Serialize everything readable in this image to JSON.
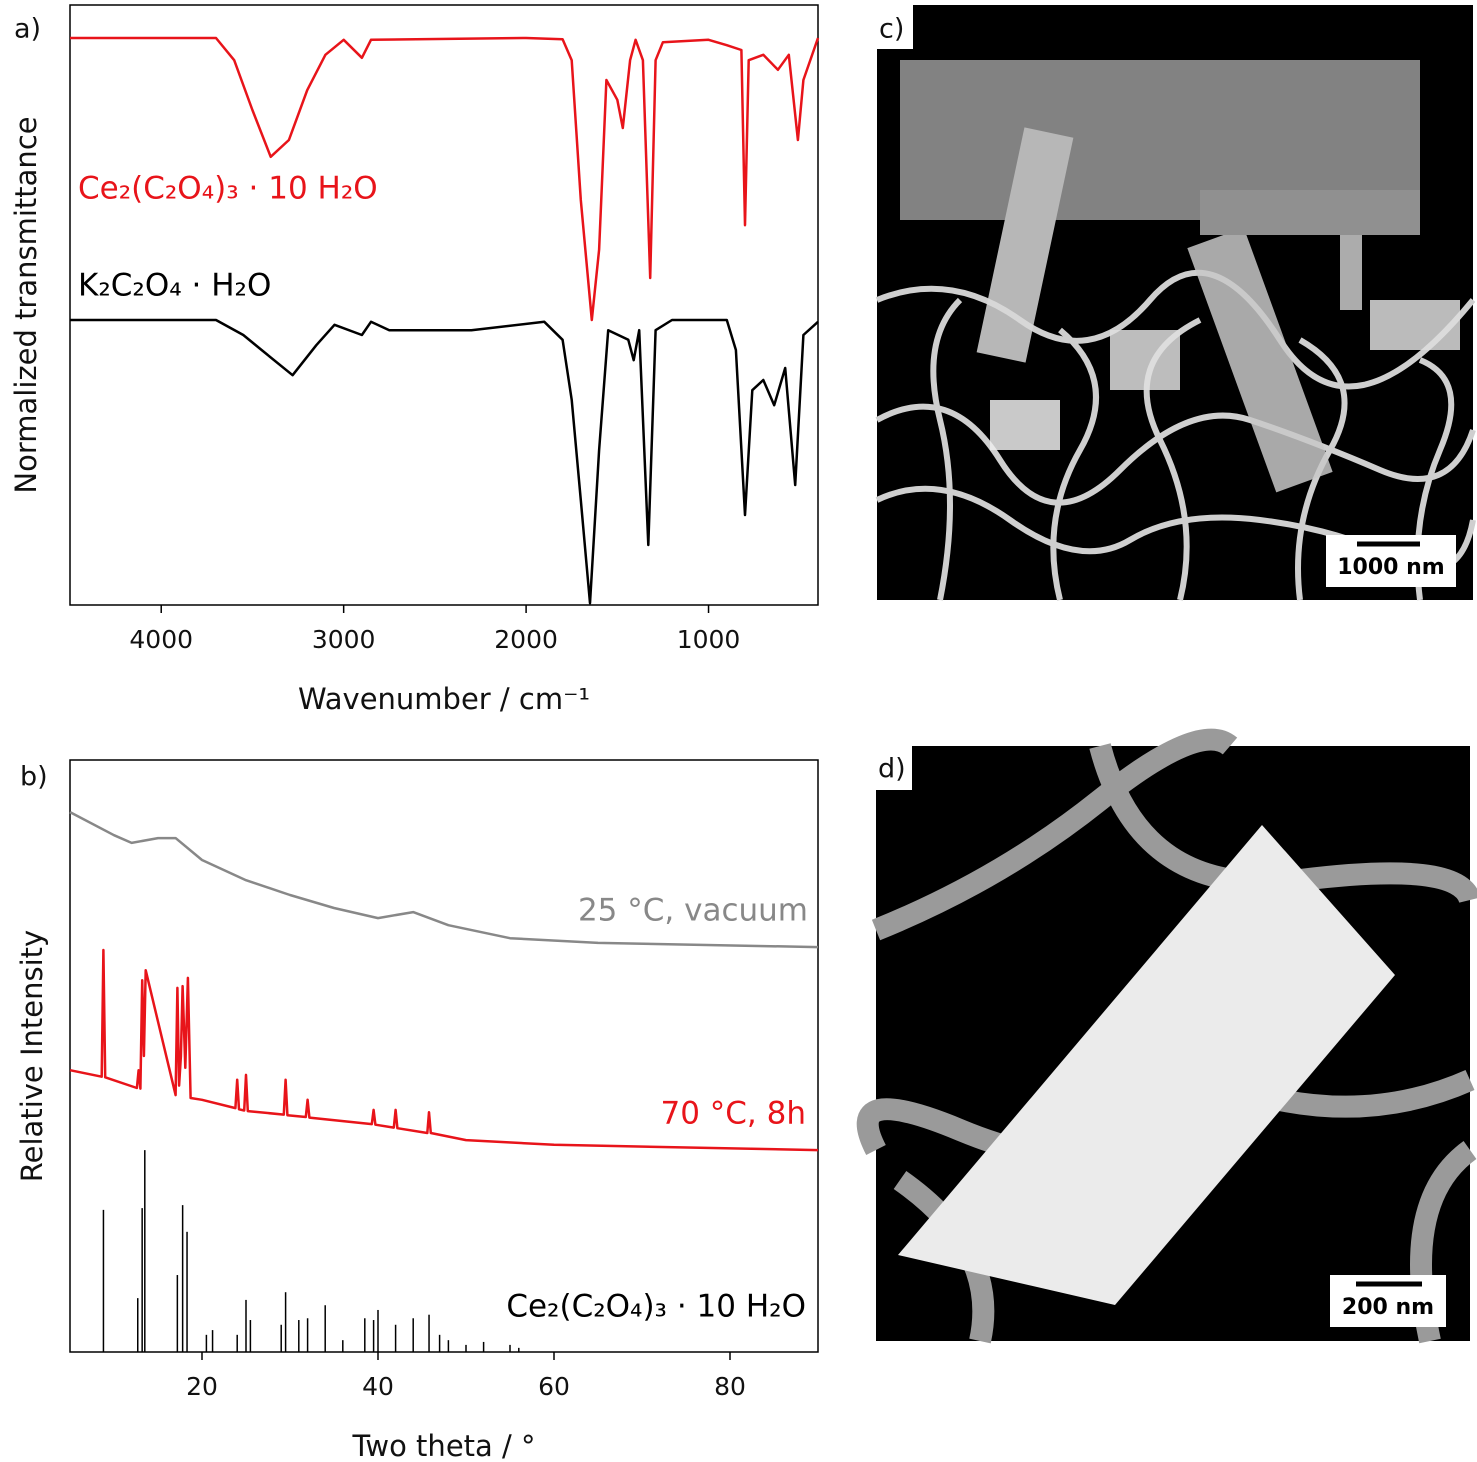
{
  "chart_data": [
    {
      "type": "line",
      "panel_label": "a)",
      "x_label": "Wavenumber / cm⁻¹",
      "y_label": "Normalized transmittance",
      "xlim": [
        4500,
        400
      ],
      "xticks": [
        4000,
        3000,
        2000,
        1000
      ],
      "ylim": [
        0,
        100
      ],
      "series": [
        {
          "name": "Ce₂(C₂O₄)₃ · 10 H₂O",
          "color": "#e8141a",
          "x": [
            4500,
            3700,
            3600,
            3500,
            3400,
            3300,
            3200,
            3100,
            3000,
            2900,
            2850,
            2000,
            1800,
            1750,
            1700,
            1640,
            1600,
            1560,
            1500,
            1470,
            1430,
            1400,
            1360,
            1320,
            1290,
            1250,
            1000,
            900,
            820,
            800,
            780,
            700,
            620,
            560,
            510,
            480,
            400
          ],
          "values": [
            94.5,
            94.5,
            90.8,
            82.5,
            74.7,
            77.5,
            85.8,
            91.7,
            94.2,
            91.2,
            94.2,
            94.5,
            94.3,
            90.8,
            67.5,
            47.5,
            59.2,
            87.5,
            84.2,
            79.5,
            90.8,
            94.2,
            90.8,
            54.5,
            90.8,
            93.8,
            94.2,
            93.3,
            92.5,
            63.3,
            90.8,
            91.7,
            89.2,
            91.7,
            77.5,
            87.5,
            94.5
          ]
        },
        {
          "name": "K₂C₂O₄ · H₂O",
          "color": "#000000",
          "x": [
            4500,
            3700,
            3550,
            3450,
            3280,
            3150,
            3050,
            2900,
            2850,
            2750,
            2300,
            1900,
            1800,
            1750,
            1700,
            1650,
            1600,
            1550,
            1440,
            1410,
            1380,
            1330,
            1290,
            1200,
            900,
            850,
            800,
            760,
            700,
            640,
            580,
            525,
            480,
            400
          ],
          "values": [
            47.5,
            47.5,
            45,
            42.5,
            38.3,
            43.3,
            46.7,
            45,
            47.2,
            45.8,
            45.8,
            47.2,
            44.2,
            34.2,
            17.5,
            0.3,
            25.8,
            45.8,
            44.2,
            40.8,
            45.8,
            10,
            45.8,
            47.5,
            47.5,
            42.5,
            15,
            35.8,
            37.5,
            33.3,
            39.5,
            20,
            45,
            47.2
          ]
        }
      ]
    },
    {
      "type": "line",
      "panel_label": "b)",
      "x_label": "Two theta / °",
      "y_label": "Relative Intensity",
      "xlim": [
        5,
        90
      ],
      "xticks": [
        20,
        40,
        60,
        80
      ],
      "ylim": [
        0,
        100
      ],
      "series": [
        {
          "name": "25 °C, vacuum",
          "color": "#888888",
          "x": [
            5,
            10,
            12,
            15,
            17,
            20,
            25,
            30,
            35,
            40,
            44,
            48,
            55,
            65,
            90
          ],
          "values": [
            91.2,
            87.3,
            86,
            86.8,
            86.8,
            83.1,
            79.7,
            77.2,
            75,
            73.3,
            74.3,
            72.1,
            69.9,
            69.1,
            68.4
          ]
        },
        {
          "name": "70 °C, 8h",
          "color": "#e8141a",
          "x": [
            5,
            8.6,
            8.8,
            9,
            12.6,
            12.8,
            13,
            13.2,
            13.4,
            13.6,
            17,
            17.2,
            17.4,
            17.6,
            17.8,
            18.1,
            18.4,
            18.7,
            20,
            23.8,
            24,
            24.2,
            24.8,
            25,
            25.2,
            29.3,
            29.5,
            29.7,
            31.8,
            32,
            32.2,
            39.3,
            39.5,
            39.7,
            41.8,
            42,
            42.2,
            45.6,
            45.8,
            46,
            50,
            60,
            90
          ],
          "values": [
            47.6,
            46.5,
            67.9,
            46.4,
            44.6,
            47.6,
            44.5,
            62.8,
            50,
            64.5,
            43.4,
            61.5,
            45,
            50,
            61.8,
            48,
            63.2,
            42.9,
            42.6,
            41.2,
            46,
            41,
            40.8,
            46.8,
            40.7,
            40.1,
            46,
            40,
            39.7,
            42.6,
            39.6,
            38.5,
            40.9,
            38.4,
            37.9,
            40.9,
            37.8,
            37,
            40.5,
            37,
            35.8,
            35,
            34.1
          ]
        },
        {
          "name": "Ce₂(C₂O₄)₃ · 10 H₂O",
          "color": "#000000",
          "type": "stick",
          "x": [
            8.8,
            12.7,
            13.2,
            13.5,
            17.2,
            17.8,
            18.3,
            20.5,
            21.2,
            24,
            25,
            25.5,
            29,
            29.5,
            31,
            32,
            34,
            36,
            38.5,
            39.5,
            40,
            42,
            44,
            45.8,
            47,
            48,
            50,
            52,
            55,
            56
          ],
          "values": [
            24,
            9.1,
            24.3,
            34.1,
            13,
            24.8,
            20.3,
            2.9,
            3.7,
            2.9,
            8.8,
            5.4,
            4.6,
            10.1,
            5.4,
            5.7,
            7.9,
            2,
            5.7,
            5.4,
            7.1,
            4.6,
            5.7,
            6.3,
            2.9,
            2,
            1.2,
            1.7,
            1.2,
            0.7
          ]
        }
      ]
    }
  ],
  "images": [
    {
      "label": "c)",
      "scale_bar": "1000 nm"
    },
    {
      "label": "d)",
      "scale_bar": "200 nm"
    }
  ]
}
